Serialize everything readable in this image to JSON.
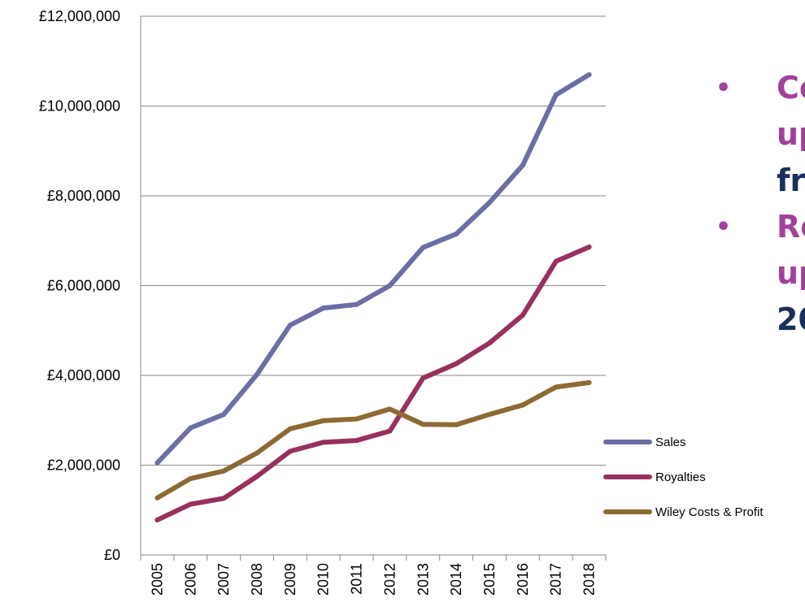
{
  "chart_data": {
    "type": "line",
    "categories": [
      "2005",
      "2006",
      "2007",
      "2008",
      "2009",
      "2010",
      "2011",
      "2012",
      "2013",
      "2014",
      "2015",
      "2016",
      "2017",
      "2018"
    ],
    "ylim": [
      0,
      12000000
    ],
    "yticks": [
      {
        "value": 0,
        "label": "£0"
      },
      {
        "value": 2000000,
        "label": "£2,000,000"
      },
      {
        "value": 4000000,
        "label": "£4,000,000"
      },
      {
        "value": 6000000,
        "label": "£6,000,000"
      },
      {
        "value": 8000000,
        "label": "£8,000,000"
      },
      {
        "value": 10000000,
        "label": "£10,000,000"
      },
      {
        "value": 12000000,
        "label": "£12,000,000"
      }
    ],
    "grid": "horizontal",
    "legend_position": "right",
    "series": [
      {
        "name": "Sales",
        "color": "#6c6ea6",
        "values": [
          2050000,
          2830000,
          3130000,
          4020000,
          5120000,
          5500000,
          5580000,
          6000000,
          6850000,
          7150000,
          7850000,
          8680000,
          10250000,
          10700000
        ]
      },
      {
        "name": "Royalties",
        "color": "#98305f",
        "values": [
          780000,
          1130000,
          1260000,
          1750000,
          2310000,
          2510000,
          2550000,
          2760000,
          3940000,
          4260000,
          4720000,
          5340000,
          6540000,
          6860000
        ]
      },
      {
        "name": "Wiley Costs & Profit",
        "color": "#8c6a34",
        "values": [
          1270000,
          1700000,
          1870000,
          2270000,
          2810000,
          2990000,
          3030000,
          3250000,
          2910000,
          2900000,
          3130000,
          3340000,
          3740000,
          3840000
        ]
      }
    ]
  },
  "bullets": [
    {
      "line1": "Co",
      "line2": "up",
      "line3": "fr"
    },
    {
      "line1": "Ro",
      "line2": "up",
      "line3": "20"
    }
  ]
}
